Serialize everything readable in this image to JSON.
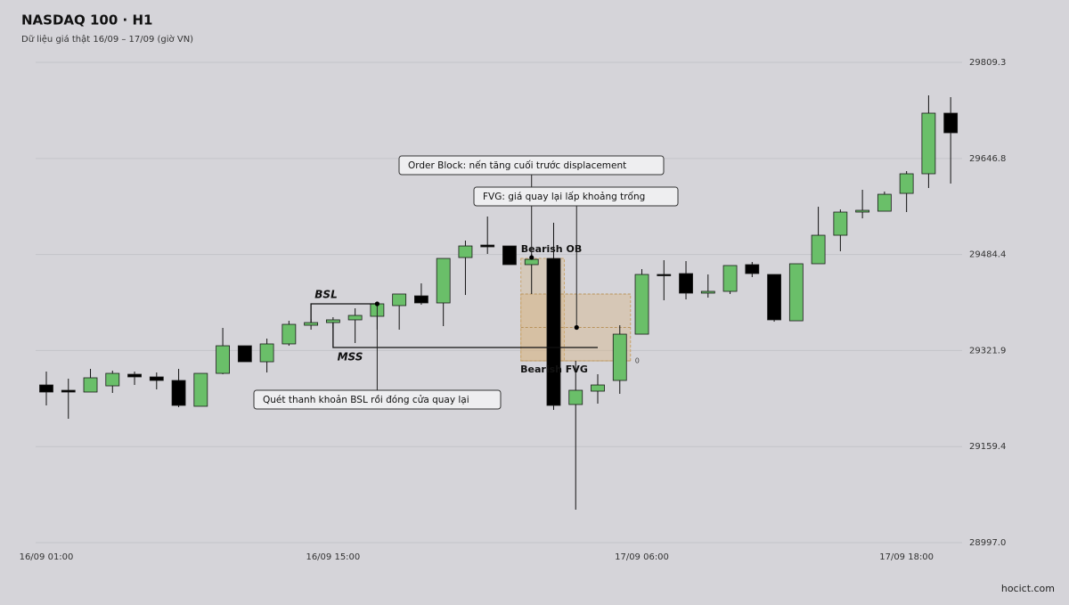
{
  "chart_data": {
    "type": "candlestick",
    "title": "NASDAQ 100 · H1",
    "subtitle": "Dữ liệu giá thật 16/09 – 17/09 (giờ VN)",
    "source": "hocict.com",
    "categories": [
      "16/09 01:00",
      null,
      null,
      null,
      null,
      null,
      null,
      null,
      null,
      null,
      null,
      null,
      null,
      "16/09 15:00",
      null,
      null,
      null,
      null,
      null,
      null,
      null,
      null,
      null,
      null,
      null,
      null,
      null,
      "17/09 06:00",
      null,
      null,
      null,
      null,
      null,
      null,
      null,
      null,
      null,
      null,
      null,
      "17/09 18:00",
      null,
      null
    ],
    "open": [
      29263.7,
      29254.7,
      29251.7,
      29262.2,
      29281.8,
      29277.3,
      29271.3,
      29227.6,
      29283.3,
      29330.0,
      29302.9,
      29333.1,
      29364.7,
      29369.2,
      29373.8,
      29379.8,
      29397.9,
      29414.4,
      29402.4,
      29479.2,
      29500.3,
      29498.8,
      29467.2,
      29477.7,
      29230.6,
      29253.2,
      29271.3,
      29349.6,
      29450.6,
      29452.1,
      29419.0,
      29422.0,
      29467.2,
      29450.6,
      29372.2,
      29468.7,
      29516.9,
      29556.1,
      29557.6,
      29587.7,
      29620.9,
      29723.4
    ],
    "high": [
      29286.3,
      29274.3,
      29290.9,
      29287.9,
      29286.3,
      29284.8,
      29290.9,
      29283.3,
      29360.2,
      29330.0,
      29342.1,
      29372.2,
      29375.3,
      29378.3,
      29393.3,
      29400.9,
      29417.5,
      29435.5,
      29477.7,
      29507.9,
      29548.6,
      29498.8,
      29485.3,
      29538.0,
      29304.4,
      29281.8,
      29364.7,
      29459.6,
      29474.7,
      29473.2,
      29450.6,
      29465.7,
      29471.7,
      29450.6,
      29468.7,
      29565.1,
      29560.6,
      29593.8,
      29590.8,
      29625.4,
      29753.5,
      29750.5
    ],
    "low": [
      29229.1,
      29206.5,
      29251.7,
      29250.2,
      29263.7,
      29256.2,
      29226.1,
      29227.6,
      29281.8,
      29302.9,
      29284.8,
      29330.0,
      29357.2,
      29360.2,
      29334.6,
      29357.2,
      29357.2,
      29399.4,
      29363.2,
      29415.9,
      29485.3,
      29467.2,
      29417.5,
      29221.5,
      29052.8,
      29232.1,
      29248.7,
      29349.6,
      29406.9,
      29408.4,
      29411.4,
      29417.5,
      29446.1,
      29370.7,
      29372.2,
      29468.7,
      29489.8,
      29545.5,
      29557.6,
      29556.1,
      29596.8,
      29604.3
    ],
    "close": [
      29251.7,
      29251.7,
      29275.8,
      29283.3,
      29277.3,
      29271.3,
      29229.1,
      29283.3,
      29330.0,
      29302.9,
      29333.1,
      29366.2,
      29369.2,
      29373.8,
      29381.3,
      29400.9,
      29417.5,
      29402.4,
      29477.7,
      29498.8,
      29497.3,
      29467.2,
      29476.2,
      29229.1,
      29254.7,
      29263.7,
      29349.6,
      29450.6,
      29449.1,
      29419.0,
      29422.0,
      29465.7,
      29452.1,
      29373.8,
      29468.7,
      29516.9,
      29556.1,
      29559.1,
      29586.2,
      29620.9,
      29723.4,
      29690.2
    ],
    "up_color": "#6abf69",
    "down_color": "#000000",
    "ylim": [
      28997,
      29809.3
    ],
    "yticks": [
      {
        "value": 28997,
        "label": "28997.0"
      },
      29159.4,
      29321.9,
      29484.4,
      29646.8,
      29809.3
    ],
    "grid": true,
    "zones": [
      {
        "label": "Bearish OB",
        "top": 29477.7,
        "bottom": 29304.4
      },
      {
        "label": "Bearish FVG",
        "top": 29417.5,
        "bottom": 29304.4,
        "levels": [
          "1",
          "0.5",
          "0"
        ]
      }
    ],
    "levels": [
      {
        "label": "BSL",
        "value": 29400.9
      },
      {
        "label": "MSS",
        "value": 29327.0
      }
    ],
    "callouts": [
      {
        "text": "Order Block: nến tăng cuối trước displacement",
        "value": 29479.2
      },
      {
        "text": "FVG: giá quay lại lấp khoảng trống",
        "value": 29360.95
      },
      {
        "text": "Quét thanh khoản BSL rồi đóng cửa quay lại",
        "value": 29400.9
      }
    ]
  }
}
